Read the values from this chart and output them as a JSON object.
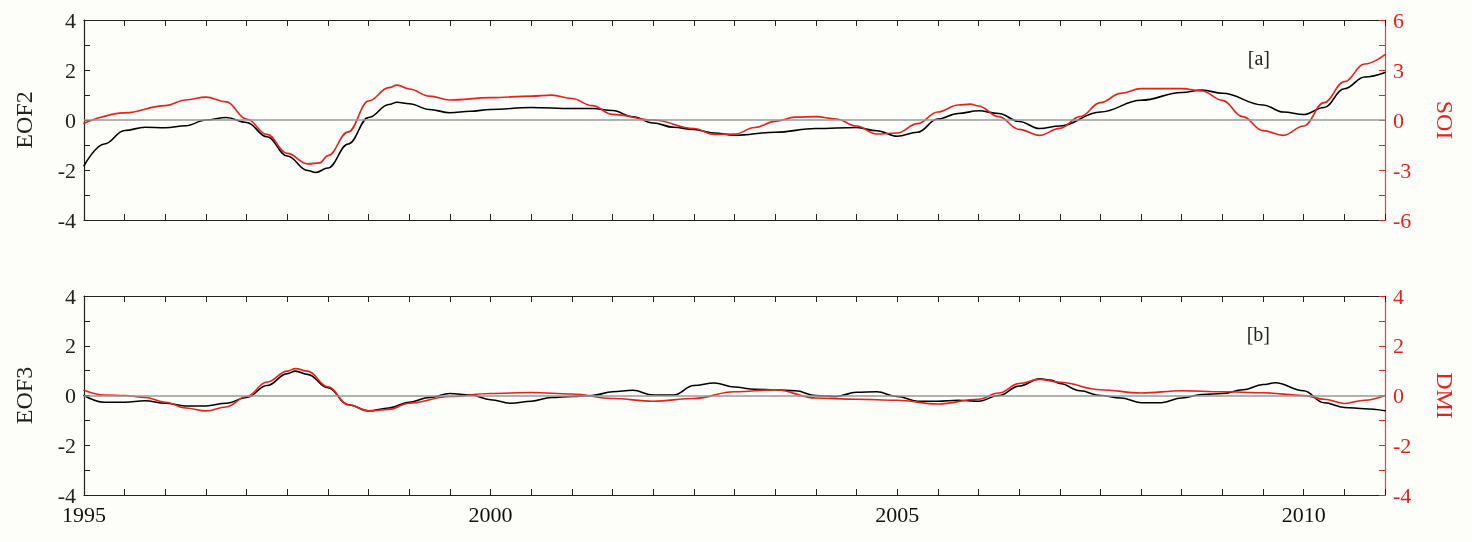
{
  "chart_data": [
    {
      "type": "line",
      "ylabel": "EOF2",
      "y2label": "SOI",
      "annotations": [
        "[a]"
      ],
      "xlim": [
        1995,
        2011
      ],
      "ylim": [
        -4,
        4
      ],
      "y2lim": [
        -6,
        6
      ],
      "tick_labels": "y",
      "grid": false,
      "marker": "none",
      "line_style": "solid",
      "xticks": [
        1995,
        {
          "value": 1995.5,
          "label": null
        },
        {
          "value": 1996,
          "label": null
        },
        {
          "value": 1996.5,
          "label": null
        },
        {
          "value": 1997,
          "label": null
        },
        {
          "value": 1997.5,
          "label": null
        },
        {
          "value": 1998,
          "label": null
        },
        {
          "value": 1998.5,
          "label": null
        },
        {
          "value": 1999,
          "label": null
        },
        {
          "value": 1999.5,
          "label": null
        },
        2000,
        {
          "value": 2000.5,
          "label": null
        },
        {
          "value": 2001,
          "label": null
        },
        {
          "value": 2001.5,
          "label": null
        },
        {
          "value": 2002,
          "label": null
        },
        {
          "value": 2002.5,
          "label": null
        },
        {
          "value": 2003,
          "label": null
        },
        {
          "value": 2003.5,
          "label": null
        },
        {
          "value": 2004,
          "label": null
        },
        {
          "value": 2004.5,
          "label": null
        },
        2005,
        {
          "value": 2005.5,
          "label": null
        },
        {
          "value": 2006,
          "label": null
        },
        {
          "value": 2006.5,
          "label": null
        },
        {
          "value": 2007,
          "label": null
        },
        {
          "value": 2007.5,
          "label": null
        },
        {
          "value": 2008,
          "label": null
        },
        {
          "value": 2008.5,
          "label": null
        },
        {
          "value": 2009,
          "label": null
        },
        {
          "value": 2009.5,
          "label": null
        },
        2010,
        {
          "value": 2010.5,
          "label": null
        },
        {
          "value": 2011,
          "label": null
        }
      ],
      "yticks": [
        -4,
        {
          "value": -3,
          "label": null
        },
        -2,
        {
          "value": -1,
          "label": null
        },
        0,
        {
          "value": 1,
          "label": null
        },
        2,
        {
          "value": 3,
          "label": null
        },
        4
      ],
      "y2ticks": [
        -6,
        {
          "value": -4.5,
          "label": null
        },
        -3,
        {
          "value": -1.5,
          "label": null
        },
        0,
        {
          "value": 1.5,
          "label": null
        },
        3,
        {
          "value": 4.5,
          "label": null
        },
        6
      ],
      "ref_lines": [
        {
          "axis": "y",
          "value": 0,
          "label": null,
          "color": "#999999"
        }
      ],
      "series": [
        {
          "color": "#000000",
          "x": [
            1995,
            1995.25,
            1995.5,
            1995.75,
            1996,
            1996.25,
            1996.5,
            1996.75,
            1997,
            1997.25,
            1997.5,
            1997.75,
            1997.85,
            1998,
            1998.25,
            1998.5,
            1998.75,
            1998.85,
            1999,
            1999.25,
            1999.5,
            1999.75,
            2000,
            2000.5,
            2001,
            2001.25,
            2001.5,
            2001.75,
            2002,
            2002.25,
            2002.5,
            2002.75,
            2003,
            2003.5,
            2004,
            2004.5,
            2004.75,
            2005,
            2005.25,
            2005.5,
            2005.75,
            2006,
            2006.25,
            2006.5,
            2006.75,
            2007,
            2007.5,
            2008,
            2008.5,
            2008.75,
            2009,
            2009.5,
            2009.75,
            2010,
            2010.25,
            2010.5,
            2010.75,
            2011
          ],
          "values": [
            -1.83,
            -0.96,
            -0.42,
            -0.29,
            -0.31,
            -0.23,
            0,
            0.1,
            -0.1,
            -0.67,
            -1.44,
            -2.02,
            -2.1,
            -1.92,
            -0.96,
            0.1,
            0.62,
            0.71,
            0.65,
            0.42,
            0.29,
            0.35,
            0.42,
            0.5,
            0.46,
            0.46,
            0.38,
            0.13,
            -0.12,
            -0.29,
            -0.38,
            -0.52,
            -0.61,
            -0.49,
            -0.34,
            -0.3,
            -0.43,
            -0.65,
            -0.49,
            0.04,
            0.26,
            0.37,
            0.26,
            -0.06,
            -0.34,
            -0.24,
            0.32,
            0.79,
            1.1,
            1.2,
            1.07,
            0.6,
            0.32,
            0.22,
            0.5,
            1.25,
            1.72,
            1.9
          ]
        },
        {
          "color": "#e8211b",
          "axis": "y2",
          "x": [
            1995,
            1995.5,
            1996,
            1996.25,
            1996.5,
            1996.75,
            1997,
            1997.25,
            1997.5,
            1997.75,
            1997.9,
            1998,
            1998.25,
            1998.5,
            1998.75,
            1998.85,
            1999,
            1999.25,
            1999.5,
            2000,
            2000.5,
            2000.75,
            2001,
            2001.25,
            2001.5,
            2002,
            2002.5,
            2002.75,
            2003,
            2003.25,
            2003.5,
            2003.75,
            2004,
            2004.25,
            2004.5,
            2004.75,
            2005,
            2005.25,
            2005.5,
            2005.75,
            2005.9,
            2006,
            2006.25,
            2006.5,
            2006.75,
            2007,
            2007.25,
            2007.5,
            2007.75,
            2008,
            2008.5,
            2008.75,
            2009,
            2009.25,
            2009.5,
            2009.75,
            2010,
            2010.25,
            2010.5,
            2010.75,
            2011
          ],
          "values": [
            -0.2,
            0.43,
            0.86,
            1.2,
            1.37,
            1.09,
            0.06,
            -0.86,
            -2.0,
            -2.63,
            -2.57,
            -2.14,
            -0.71,
            1.14,
            1.94,
            2.09,
            1.86,
            1.43,
            1.2,
            1.34,
            1.43,
            1.49,
            1.29,
            0.86,
            0.34,
            0,
            -0.51,
            -0.86,
            -0.85,
            -0.45,
            -0.08,
            0.17,
            0.2,
            0.06,
            -0.36,
            -0.84,
            -0.78,
            -0.22,
            0.48,
            0.9,
            0.95,
            0.84,
            0.2,
            -0.56,
            -0.92,
            -0.5,
            0.2,
            1.04,
            1.6,
            1.88,
            1.88,
            1.74,
            1.18,
            0.2,
            -0.64,
            -0.92,
            -0.36,
            1.04,
            2.3,
            3.36,
            3.92
          ]
        }
      ]
    },
    {
      "type": "line",
      "ylabel": "EOF3",
      "y2label": "DMI",
      "annotations": [
        "[b]"
      ],
      "xlim": [
        1995,
        2011
      ],
      "ylim": [
        -4,
        4
      ],
      "y2lim": [
        -4,
        4
      ],
      "grid": false,
      "marker": "none",
      "line_style": "solid",
      "xticks": [
        1995,
        {
          "value": 1995.5,
          "label": null
        },
        {
          "value": 1996,
          "label": null
        },
        {
          "value": 1996.5,
          "label": null
        },
        {
          "value": 1997,
          "label": null
        },
        {
          "value": 1997.5,
          "label": null
        },
        {
          "value": 1998,
          "label": null
        },
        {
          "value": 1998.5,
          "label": null
        },
        {
          "value": 1999,
          "label": null
        },
        {
          "value": 1999.5,
          "label": null
        },
        2000,
        {
          "value": 2000.5,
          "label": null
        },
        {
          "value": 2001,
          "label": null
        },
        {
          "value": 2001.5,
          "label": null
        },
        {
          "value": 2002,
          "label": null
        },
        {
          "value": 2002.5,
          "label": null
        },
        {
          "value": 2003,
          "label": null
        },
        {
          "value": 2003.5,
          "label": null
        },
        {
          "value": 2004,
          "label": null
        },
        {
          "value": 2004.5,
          "label": null
        },
        2005,
        {
          "value": 2005.5,
          "label": null
        },
        {
          "value": 2006,
          "label": null
        },
        {
          "value": 2006.5,
          "label": null
        },
        {
          "value": 2007,
          "label": null
        },
        {
          "value": 2007.5,
          "label": null
        },
        {
          "value": 2008,
          "label": null
        },
        {
          "value": 2008.5,
          "label": null
        },
        {
          "value": 2009,
          "label": null
        },
        {
          "value": 2009.5,
          "label": null
        },
        2010,
        {
          "value": 2010.5,
          "label": null
        },
        {
          "value": 2011,
          "label": null
        }
      ],
      "yticks": [
        -4,
        {
          "value": -3,
          "label": null
        },
        -2,
        {
          "value": -1,
          "label": null
        },
        0,
        {
          "value": 1,
          "label": null
        },
        2,
        {
          "value": 3,
          "label": null
        },
        4
      ],
      "y2ticks": [
        -4,
        {
          "value": -3,
          "label": null
        },
        -2,
        {
          "value": -1,
          "label": null
        },
        0,
        {
          "value": 1,
          "label": null
        },
        2,
        {
          "value": 3,
          "label": null
        },
        4
      ],
      "ref_lines": [
        {
          "axis": "y",
          "value": 0,
          "label": null,
          "color": "#999999"
        }
      ],
      "series": [
        {
          "color": "#000000",
          "x": [
            1995,
            1995.25,
            1995.5,
            1995.75,
            1996,
            1996.25,
            1996.5,
            1996.75,
            1997,
            1997.25,
            1997.5,
            1997.6,
            1997.75,
            1998,
            1998.25,
            1998.5,
            1998.75,
            1999,
            1999.25,
            1999.5,
            1999.75,
            2000,
            2000.25,
            2000.5,
            2000.75,
            2001,
            2001.25,
            2001.5,
            2001.75,
            2002,
            2002.25,
            2002.5,
            2002.75,
            2003,
            2003.25,
            2003.5,
            2003.75,
            2004,
            2004.25,
            2004.5,
            2004.75,
            2005,
            2005.25,
            2005.5,
            2005.75,
            2006,
            2006.25,
            2006.5,
            2006.75,
            2006.9,
            2007,
            2007.25,
            2007.5,
            2007.75,
            2008,
            2008.25,
            2008.5,
            2008.75,
            2009,
            2009.25,
            2009.5,
            2009.65,
            2010,
            2010.25,
            2010.5,
            2010.75,
            2011
          ],
          "values": [
            0,
            -0.27,
            -0.27,
            -0.21,
            -0.31,
            -0.42,
            -0.42,
            -0.31,
            -0.08,
            0.4,
            0.88,
            0.98,
            0.85,
            0.31,
            -0.37,
            -0.62,
            -0.5,
            -0.27,
            -0.08,
            0.08,
            0.02,
            -0.17,
            -0.31,
            -0.23,
            -0.08,
            -0.04,
            0,
            0.15,
            0.21,
            0.02,
            0.02,
            0.4,
            0.5,
            0.34,
            0.25,
            0.23,
            0.19,
            0,
            -0.04,
            0.13,
            0.15,
            -0.04,
            -0.23,
            -0.23,
            -0.19,
            -0.23,
            0,
            0.38,
            0.67,
            0.61,
            0.48,
            0.19,
            0,
            -0.1,
            -0.29,
            -0.29,
            -0.1,
            0.04,
            0.08,
            0.23,
            0.44,
            0.51,
            0.19,
            -0.29,
            -0.48,
            -0.53,
            -0.61
          ]
        },
        {
          "color": "#e8211b",
          "axis": "y2",
          "x": [
            1995,
            1995.25,
            1995.5,
            1995.75,
            1996,
            1996.25,
            1996.5,
            1996.75,
            1997,
            1997.25,
            1997.5,
            1997.6,
            1997.75,
            1998,
            1998.25,
            1998.5,
            1998.75,
            1999,
            1999.5,
            2000,
            2000.5,
            2001,
            2001.5,
            2002,
            2002.5,
            2003,
            2003.5,
            2004,
            2004.5,
            2005,
            2005.5,
            2006,
            2006.25,
            2006.5,
            2006.75,
            2007,
            2007.5,
            2008,
            2008.5,
            2009,
            2009.5,
            2010,
            2010.25,
            2010.5,
            2010.75,
            2011
          ],
          "values": [
            0.21,
            0.02,
            0,
            -0.08,
            -0.27,
            -0.5,
            -0.62,
            -0.46,
            -0.04,
            0.54,
            0.98,
            1.08,
            0.98,
            0.35,
            -0.37,
            -0.62,
            -0.56,
            -0.31,
            -0.04,
            0.08,
            0.12,
            0.06,
            -0.12,
            -0.23,
            -0.12,
            0.15,
            0.23,
            -0.1,
            -0.15,
            -0.19,
            -0.34,
            -0.15,
            0.1,
            0.48,
            0.65,
            0.53,
            0.23,
            0.1,
            0.19,
            0.15,
            0.11,
            0,
            -0.15,
            -0.32,
            -0.19,
            0
          ]
        }
      ]
    }
  ]
}
